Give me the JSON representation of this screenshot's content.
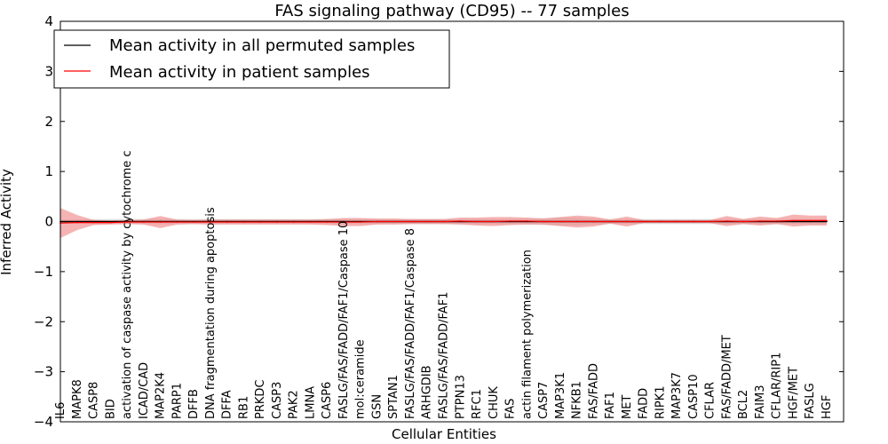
{
  "chart_data": {
    "type": "line",
    "title": "FAS signaling pathway (CD95) -- 77 samples",
    "xlabel": "Cellular Entities",
    "ylabel": "Inferred Activity",
    "ylim": [
      -4,
      4
    ],
    "yticks": [
      -4,
      -3,
      -2,
      -1,
      0,
      1,
      2,
      3,
      4
    ],
    "ytick_labels": [
      "−4",
      "−3",
      "−2",
      "−1",
      "0",
      "1",
      "2",
      "3",
      "4"
    ],
    "grid": false,
    "legend_position": "top-left",
    "categories": [
      "IL6",
      "MAPK8",
      "CASP8",
      "BID",
      "activation of caspase activity by cytochrome c",
      "ICAD/CAD",
      "MAP2K4",
      "PARP1",
      "DFFB",
      "DNA fragmentation during apoptosis",
      "DFFA",
      "RB1",
      "PRKDC",
      "CASP3",
      "PAK2",
      "LMNA",
      "CASP6",
      "FASLG/FAS/FADD/FAF1/Caspase 10",
      "mol:ceramide",
      "GSN",
      "SPTAN1",
      "FASLG/FAS/FADD/FAF1/Caspase 8",
      "ARHGDIB",
      "FASLG/FAS/FADD/FAF1",
      "PTPN13",
      "RFC1",
      "CHUK",
      "FAS",
      "actin filament polymerization",
      "CASP7",
      "MAP3K1",
      "NFKB1",
      "FAS/FADD",
      "FAF1",
      "MET",
      "FADD",
      "RIPK1",
      "MAP3K7",
      "CASP10",
      "CFLAR",
      "FAS/FADD/MET",
      "BCL2",
      "FAIM3",
      "CFLAR/RIP1",
      "HGF/MET",
      "FASLG",
      "HGF"
    ],
    "series": [
      {
        "name": "Mean activity in all permuted samples",
        "color": "#000000",
        "values": [
          0.0,
          0.0,
          0.0,
          0.0,
          0.0,
          0.0,
          0.0,
          0.0,
          0.0,
          0.0,
          0.0,
          0.0,
          0.0,
          0.0,
          0.0,
          0.0,
          0.0,
          0.0,
          0.0,
          0.0,
          0.0,
          0.0,
          0.0,
          0.0,
          0.0,
          0.0,
          0.0,
          0.0,
          0.0,
          0.0,
          0.0,
          0.0,
          0.0,
          0.0,
          0.0,
          0.0,
          0.0,
          0.0,
          0.0,
          0.0,
          0.0,
          0.0,
          0.0,
          0.0,
          0.0,
          0.0,
          0.0
        ],
        "band_half_width": [
          0.04,
          0.04,
          0.05,
          0.05,
          0.05,
          0.05,
          0.05,
          0.05,
          0.05,
          0.05,
          0.05,
          0.05,
          0.05,
          0.05,
          0.05,
          0.05,
          0.05,
          0.05,
          0.05,
          0.05,
          0.05,
          0.05,
          0.05,
          0.05,
          0.05,
          0.05,
          0.05,
          0.05,
          0.06,
          0.07,
          0.08,
          0.08,
          0.06,
          0.05,
          0.05,
          0.05,
          0.05,
          0.05,
          0.05,
          0.05,
          0.05,
          0.05,
          0.05,
          0.05,
          0.05,
          0.05,
          0.05
        ]
      },
      {
        "name": "Mean activity in patient samples",
        "color": "#ff0000",
        "values": [
          -0.03,
          -0.02,
          -0.02,
          -0.02,
          -0.01,
          -0.01,
          -0.01,
          -0.01,
          -0.01,
          -0.01,
          -0.01,
          -0.01,
          -0.01,
          -0.01,
          -0.01,
          -0.01,
          -0.01,
          -0.01,
          -0.01,
          0.0,
          0.0,
          0.0,
          0.0,
          0.0,
          0.01,
          0.0,
          0.0,
          0.01,
          0.01,
          0.0,
          0.0,
          0.0,
          0.0,
          0.0,
          0.0,
          0.0,
          0.0,
          0.0,
          0.0,
          0.0,
          0.01,
          0.0,
          0.01,
          0.01,
          0.02,
          0.02,
          0.02
        ],
        "band_half_width": [
          0.3,
          0.15,
          0.05,
          0.04,
          0.04,
          0.05,
          0.12,
          0.05,
          0.04,
          0.05,
          0.05,
          0.05,
          0.05,
          0.05,
          0.05,
          0.05,
          0.06,
          0.08,
          0.08,
          0.06,
          0.06,
          0.05,
          0.05,
          0.05,
          0.07,
          0.08,
          0.09,
          0.08,
          0.07,
          0.06,
          0.09,
          0.12,
          0.1,
          0.04,
          0.1,
          0.03,
          0.03,
          0.03,
          0.03,
          0.03,
          0.1,
          0.05,
          0.09,
          0.06,
          0.12,
          0.1,
          0.1
        ]
      }
    ]
  }
}
